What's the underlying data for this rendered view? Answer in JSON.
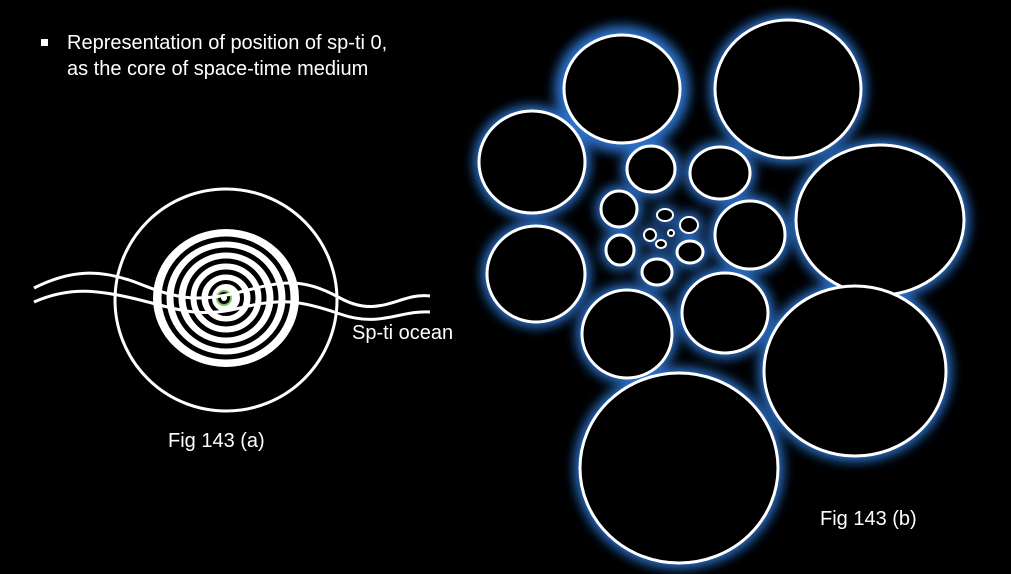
{
  "slide": {
    "bullet_text_line1": "Representation of position of sp-ti 0,",
    "bullet_text_line2": "as the core of space-time medium"
  },
  "figure_a": {
    "label_ocean": "Sp-ti ocean",
    "caption": "Fig 143 (a)"
  },
  "figure_b": {
    "caption": "Fig 143 (b)"
  },
  "colors": {
    "background": "#000000",
    "stroke": "#ffffff",
    "glow": "#3a7fd9",
    "core_ring": "#7fbf5f"
  }
}
